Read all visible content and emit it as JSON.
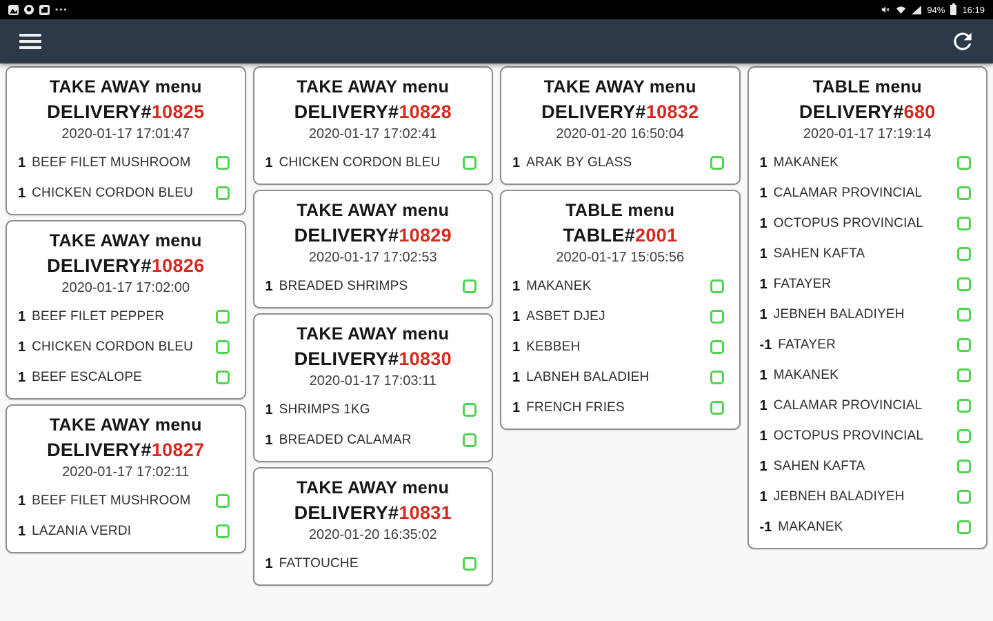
{
  "status_bar": {
    "time": "16:19",
    "battery_percent": "94%",
    "left_icons": [
      "gallery-icon",
      "location-icon",
      "screenshot-app-icon",
      "more-notifications-icon"
    ],
    "right_icons": [
      "mute-icon",
      "wifi-icon",
      "signal-icon",
      "battery-icon"
    ],
    "more_dots": "•••"
  },
  "header": {
    "icons": [
      "hamburger-menu-icon",
      "refresh-icon"
    ]
  },
  "colors": {
    "status_bar_bg": "#000000",
    "header_bg": "#2b3948",
    "board_bg": "#f7f8f9",
    "card_bg": "#ffffff",
    "card_border": "#8f8f8f",
    "order_number_red": "#d42a1f",
    "checkbox_green": "#4ed44e"
  },
  "columns": [
    {
      "cards": [
        {
          "menu": "TAKE AWAY menu",
          "order_label": "DELIVERY#",
          "order_number": "10825",
          "timestamp": "2020-01-17 17:01:47",
          "items": [
            {
              "qty": "1",
              "name": "BEEF FILET MUSHROOM"
            },
            {
              "qty": "1",
              "name": "CHICKEN CORDON BLEU"
            }
          ]
        },
        {
          "menu": "TAKE AWAY menu",
          "order_label": "DELIVERY#",
          "order_number": "10826",
          "timestamp": "2020-01-17 17:02:00",
          "items": [
            {
              "qty": "1",
              "name": "BEEF FILET PEPPER"
            },
            {
              "qty": "1",
              "name": "CHICKEN CORDON BLEU"
            },
            {
              "qty": "1",
              "name": "BEEF ESCALOPE"
            }
          ]
        },
        {
          "menu": "TAKE AWAY menu",
          "order_label": "DELIVERY#",
          "order_number": "10827",
          "timestamp": "2020-01-17 17:02:11",
          "items": [
            {
              "qty": "1",
              "name": "BEEF FILET MUSHROOM"
            },
            {
              "qty": "1",
              "name": "LAZANIA VERDI"
            }
          ]
        }
      ]
    },
    {
      "cards": [
        {
          "menu": "TAKE AWAY menu",
          "order_label": "DELIVERY#",
          "order_number": "10828",
          "timestamp": "2020-01-17 17:02:41",
          "items": [
            {
              "qty": "1",
              "name": "CHICKEN CORDON BLEU"
            }
          ]
        },
        {
          "menu": "TAKE AWAY menu",
          "order_label": "DELIVERY#",
          "order_number": "10829",
          "timestamp": "2020-01-17 17:02:53",
          "items": [
            {
              "qty": "1",
              "name": "BREADED SHRIMPS"
            }
          ]
        },
        {
          "menu": "TAKE AWAY menu",
          "order_label": "DELIVERY#",
          "order_number": "10830",
          "timestamp": "2020-01-17 17:03:11",
          "items": [
            {
              "qty": "1",
              "name": "SHRIMPS 1KG"
            },
            {
              "qty": "1",
              "name": "BREADED CALAMAR"
            }
          ]
        },
        {
          "menu": "TAKE AWAY menu",
          "order_label": "DELIVERY#",
          "order_number": "10831",
          "timestamp": "2020-01-20 16:35:02",
          "items": [
            {
              "qty": "1",
              "name": "FATTOUCHE"
            }
          ]
        }
      ]
    },
    {
      "cards": [
        {
          "menu": "TAKE AWAY menu",
          "order_label": "DELIVERY#",
          "order_number": "10832",
          "timestamp": "2020-01-20 16:50:04",
          "items": [
            {
              "qty": "1",
              "name": "ARAK BY GLASS"
            }
          ]
        },
        {
          "menu": "TABLE menu",
          "order_label": "TABLE#",
          "order_number": "2001",
          "timestamp": "2020-01-17 15:05:56",
          "items": [
            {
              "qty": "1",
              "name": "MAKANEK"
            },
            {
              "qty": "1",
              "name": "ASBET DJEJ"
            },
            {
              "qty": "1",
              "name": "KEBBEH"
            },
            {
              "qty": "1",
              "name": "LABNEH BALADIEH"
            },
            {
              "qty": "1",
              "name": "FRENCH FRIES"
            }
          ]
        }
      ]
    },
    {
      "cards": [
        {
          "menu": "TABLE menu",
          "order_label": "DELIVERY#",
          "order_number": "680",
          "timestamp": "2020-01-17 17:19:14",
          "items": [
            {
              "qty": "1",
              "name": "MAKANEK"
            },
            {
              "qty": "1",
              "name": "CALAMAR PROVINCIAL"
            },
            {
              "qty": "1",
              "name": "OCTOPUS PROVINCIAL"
            },
            {
              "qty": "1",
              "name": "SAHEN KAFTA"
            },
            {
              "qty": "1",
              "name": "FATAYER"
            },
            {
              "qty": "1",
              "name": "JEBNEH BALADIYEH"
            },
            {
              "qty": "-1",
              "name": "FATAYER"
            },
            {
              "qty": "1",
              "name": "MAKANEK"
            },
            {
              "qty": "1",
              "name": "CALAMAR PROVINCIAL"
            },
            {
              "qty": "1",
              "name": "OCTOPUS PROVINCIAL"
            },
            {
              "qty": "1",
              "name": "SAHEN KAFTA"
            },
            {
              "qty": "1",
              "name": "JEBNEH BALADIYEH"
            },
            {
              "qty": "-1",
              "name": "MAKANEK"
            }
          ]
        }
      ]
    }
  ]
}
